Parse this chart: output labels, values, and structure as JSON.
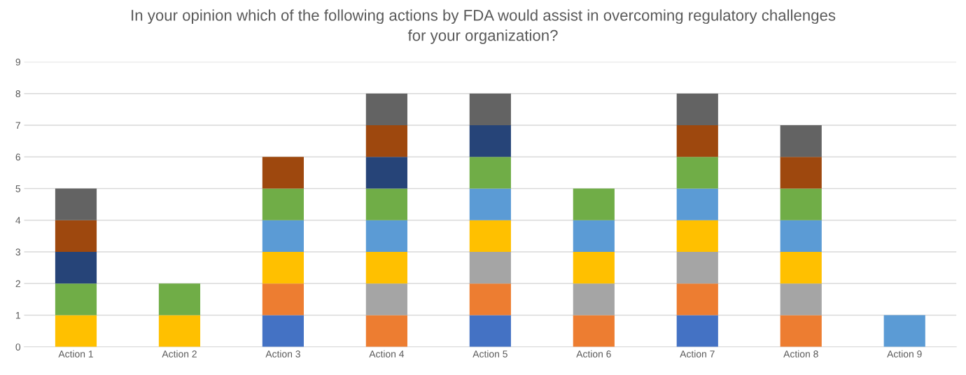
{
  "chart_data": {
    "type": "bar",
    "stacked": true,
    "title": "In your opinion which of the following actions by FDA would assist in overcoming regulatory challenges\nfor your organization?",
    "categories": [
      "Action 1",
      "Action 2",
      "Action 3",
      "Action 4",
      "Action 5",
      "Action 6",
      "Action 7",
      "Action 8",
      "Action 9"
    ],
    "series": [
      {
        "color": "#4472c4",
        "values": [
          0,
          0,
          1,
          0,
          1,
          0,
          1,
          0,
          0
        ]
      },
      {
        "color": "#ed7d31",
        "values": [
          0,
          0,
          1,
          1,
          1,
          1,
          1,
          1,
          0
        ]
      },
      {
        "color": "#a5a5a5",
        "values": [
          0,
          0,
          0,
          1,
          1,
          1,
          1,
          1,
          0
        ]
      },
      {
        "color": "#ffc000",
        "values": [
          1,
          1,
          1,
          1,
          1,
          1,
          1,
          1,
          0
        ]
      },
      {
        "color": "#5b9bd5",
        "values": [
          0,
          0,
          1,
          1,
          1,
          1,
          1,
          1,
          1
        ]
      },
      {
        "color": "#70ad47",
        "values": [
          1,
          1,
          1,
          1,
          1,
          1,
          1,
          1,
          0
        ]
      },
      {
        "color": "#264478",
        "values": [
          1,
          0,
          0,
          1,
          1,
          0,
          0,
          0,
          0
        ]
      },
      {
        "color": "#9e480e",
        "values": [
          1,
          0,
          1,
          1,
          0,
          0,
          1,
          1,
          0
        ]
      },
      {
        "color": "#636363",
        "values": [
          1,
          0,
          0,
          1,
          1,
          0,
          1,
          1,
          0
        ]
      }
    ],
    "ylim": [
      0,
      9
    ],
    "yticks": [
      0,
      1,
      2,
      3,
      4,
      5,
      6,
      7,
      8,
      9
    ],
    "grid": "y"
  }
}
